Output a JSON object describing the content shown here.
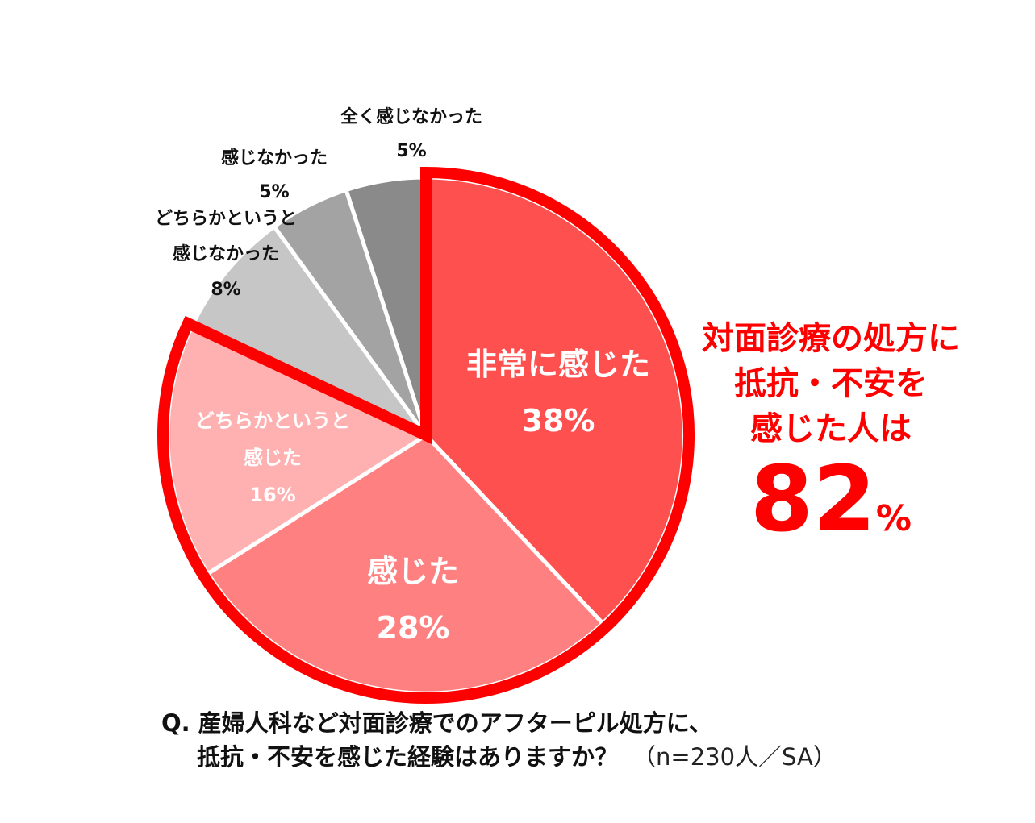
{
  "chart_data": {
    "type": "pie",
    "start_angle_deg": 0,
    "direction": "clockwise",
    "slices": [
      {
        "label_lines": [
          "非常に感じた",
          "38%"
        ],
        "value": 38,
        "color": "#ff5050",
        "text_color": "#ffffff",
        "highlight": true
      },
      {
        "label_lines": [
          "感じた",
          "28%"
        ],
        "value": 28,
        "color": "#ff8080",
        "text_color": "#ffffff",
        "highlight": true
      },
      {
        "label_lines": [
          "どちらかというと",
          "感じた",
          "16%"
        ],
        "value": 16,
        "color": "#ffb0b0",
        "text_color": "#ffffff",
        "highlight": true
      },
      {
        "label_lines": [
          "どちらかというと",
          "感じなかった",
          "8%"
        ],
        "value": 8,
        "color": "#c6c6c6",
        "text_color": "#111111",
        "highlight": false
      },
      {
        "label_lines": [
          "感じなかった",
          "5%"
        ],
        "value": 5,
        "color": "#a3a3a3",
        "text_color": "#111111",
        "highlight": false
      },
      {
        "label_lines": [
          "全く感じなかった",
          "5%"
        ],
        "value": 5,
        "color": "#8a8a8a",
        "text_color": "#111111",
        "highlight": false
      }
    ],
    "highlight_outline_color": "#ff0000"
  },
  "callout": {
    "lines": [
      "対面診療の処方に",
      "抵抗・不安を",
      "感じた人は"
    ],
    "value": "82",
    "unit": "%"
  },
  "question": {
    "line1": "Q. 産婦人科など対面診療でのアフターピル処方に、",
    "line2": "抵抗・不安を感じた経験はありますか？",
    "note": "（n=230人／SA）"
  }
}
